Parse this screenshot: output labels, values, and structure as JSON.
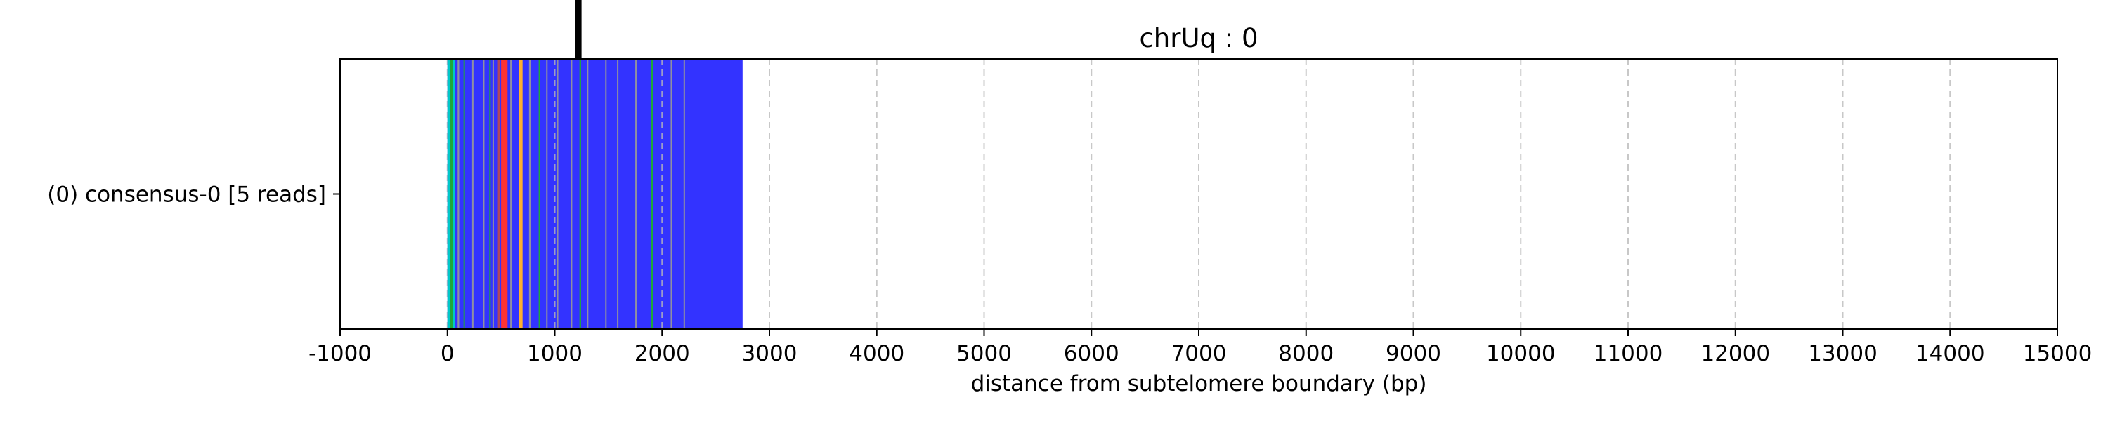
{
  "chart_data": {
    "type": "bar",
    "title": "chrUq : 0",
    "xlabel": "distance from subtelomere boundary (bp)",
    "ylabel": "",
    "xlim": [
      -1000,
      15000
    ],
    "x_ticks": [
      -1000,
      0,
      1000,
      2000,
      3000,
      4000,
      5000,
      6000,
      7000,
      8000,
      9000,
      10000,
      11000,
      12000,
      13000,
      14000,
      15000
    ],
    "x_tick_labels": [
      "-1000",
      "0",
      "1000",
      "2000",
      "3000",
      "4000",
      "5000",
      "6000",
      "7000",
      "8000",
      "9000",
      "10000",
      "11000",
      "12000",
      "13000",
      "14000",
      "15000"
    ],
    "grid": "vertical dashed",
    "categories": [
      "(0) consensus-0 [5 reads]"
    ],
    "base_track": {
      "start": 0,
      "end": 2750,
      "color": "#3333ff"
    },
    "segments": [
      {
        "start": 0,
        "end": 25,
        "color": "#00c8c8"
      },
      {
        "start": 25,
        "end": 50,
        "color": "#1fa83a"
      },
      {
        "start": 50,
        "end": 70,
        "color": "#00c8c8"
      },
      {
        "start": 95,
        "end": 110,
        "color": "#9090a0"
      },
      {
        "start": 150,
        "end": 160,
        "color": "#1fa83a"
      },
      {
        "start": 230,
        "end": 240,
        "color": "#9090a0"
      },
      {
        "start": 330,
        "end": 345,
        "color": "#9090a0"
      },
      {
        "start": 390,
        "end": 400,
        "color": "#1fa83a"
      },
      {
        "start": 420,
        "end": 430,
        "color": "#9090a0"
      },
      {
        "start": 470,
        "end": 490,
        "color": "#b04a5a"
      },
      {
        "start": 500,
        "end": 560,
        "color": "#ff3333"
      },
      {
        "start": 585,
        "end": 600,
        "color": "#9090a0"
      },
      {
        "start": 665,
        "end": 700,
        "color": "#ffb030"
      },
      {
        "start": 760,
        "end": 775,
        "color": "#9090a0"
      },
      {
        "start": 850,
        "end": 860,
        "color": "#1fa83a"
      },
      {
        "start": 920,
        "end": 930,
        "color": "#9090a0"
      },
      {
        "start": 1020,
        "end": 1030,
        "color": "#9090a0"
      },
      {
        "start": 1150,
        "end": 1160,
        "color": "#9090a0"
      },
      {
        "start": 1230,
        "end": 1245,
        "color": "#1fa83a"
      },
      {
        "start": 1300,
        "end": 1310,
        "color": "#9090a0"
      },
      {
        "start": 1470,
        "end": 1480,
        "color": "#9090a0"
      },
      {
        "start": 1580,
        "end": 1590,
        "color": "#9090a0"
      },
      {
        "start": 1750,
        "end": 1760,
        "color": "#9090a0"
      },
      {
        "start": 1900,
        "end": 1915,
        "color": "#1fa83a"
      },
      {
        "start": 2080,
        "end": 2090,
        "color": "#9090a0"
      },
      {
        "start": 2200,
        "end": 2210,
        "color": "#9090a0"
      }
    ],
    "marker": {
      "x": 1220,
      "color": "#000000"
    }
  }
}
